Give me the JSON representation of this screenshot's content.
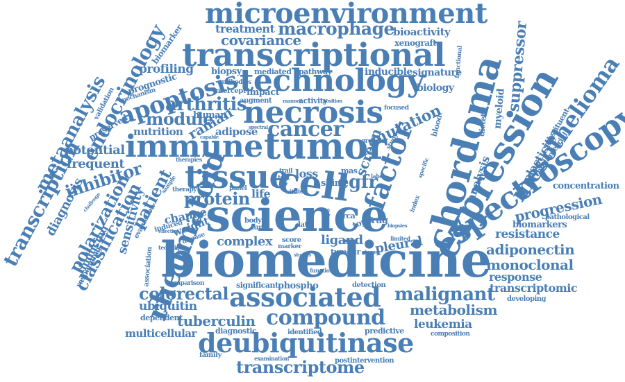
{
  "colors": {
    "word": "#4a7fb5",
    "background": "#ffffff"
  },
  "words": [
    "microenvironment",
    "macrophage",
    "treatment",
    "covariance",
    "bioactivity",
    "xenograft",
    "transcriptional",
    "biopsy",
    "technology",
    "apoptosis",
    "profiling",
    "prognostic",
    "mechanism",
    "biomarker",
    "endocrinology",
    "metaanalysis",
    "arthritis",
    "necrosis",
    "immune",
    "tumor",
    "cancer",
    "tissue",
    "cell",
    "science",
    "biomedicine",
    "chordoma",
    "expression",
    "spectroscopy",
    "mesothelioma",
    "suppressor",
    "rheumatoid",
    "transcription",
    "classification",
    "polarization",
    "diagnosis",
    "inhibitor",
    "sensitivity",
    "patient",
    "factor",
    "screen",
    "mutation",
    "egfr",
    "protein",
    "module",
    "raman",
    "nutrition",
    "adipose",
    "potential",
    "frequent",
    "complex",
    "ligand",
    "pleural",
    "associated",
    "compound",
    "deubiquitinase",
    "transcriptome",
    "colorectal",
    "ubiquitin",
    "tuberculin",
    "multicellular",
    "malignant",
    "metabolism",
    "leukemia",
    "adiponectin",
    "monoclonal",
    "response",
    "transcriptomic",
    "resistance",
    "biomarkers",
    "progression",
    "concentration",
    "analysis",
    "plasticity",
    "endometrial",
    "substituent",
    "myeloid",
    "dietetic",
    "biology",
    "signature",
    "inducible",
    "pathway",
    "mediated",
    "impact",
    "antibodies",
    "intercept",
    "augment",
    "activity",
    "human",
    "validation",
    "preserved",
    "loss",
    "life",
    "skin",
    "mas",
    "brca",
    "drug",
    "topic",
    "change",
    "weight",
    "induced",
    "evaluation",
    "inducing",
    "responding",
    "association",
    "dependent",
    "comparison",
    "technique",
    "significant",
    "phospho",
    "detection",
    "diagnostic",
    "identified",
    "predictive",
    "composition",
    "postintervention",
    "examination",
    "family",
    "data",
    "body",
    "lung",
    "tumour",
    "score",
    "marker",
    "limited",
    "glucose",
    "function",
    "pathological",
    "developing",
    "functional",
    "focused",
    "growth",
    "trail",
    "test",
    "diet",
    "site",
    "panel",
    "therapy",
    "sample",
    "challenge",
    "therapies",
    "label",
    "study",
    "type",
    "biopsies",
    "spectral",
    "capable",
    "manner",
    "position",
    "disease",
    "effective",
    "studies",
    "index",
    "specific",
    "blood"
  ]
}
